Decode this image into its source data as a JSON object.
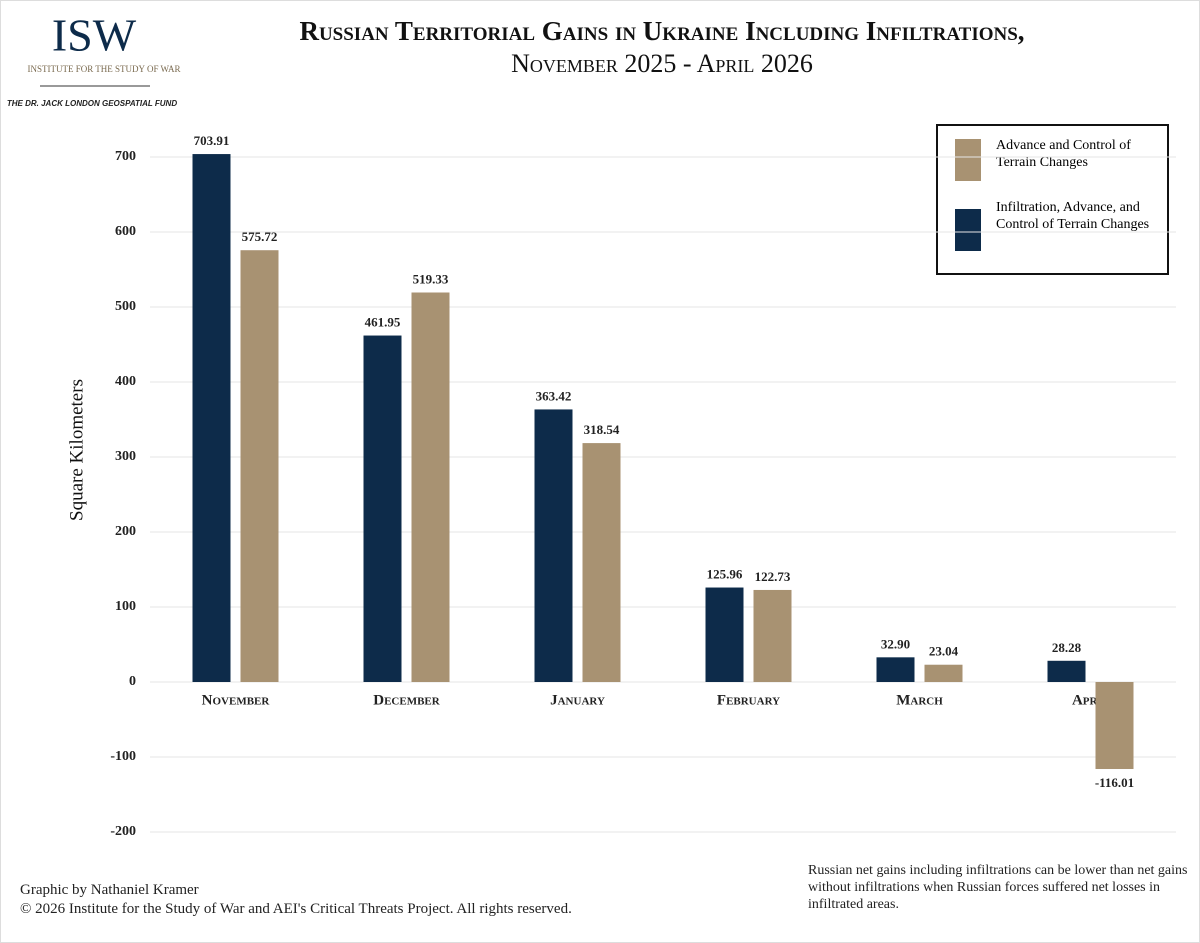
{
  "logo": {
    "mark": "ISW",
    "name": "Institute for the Study of War",
    "fund": "The Dr. Jack London Geospatial Fund"
  },
  "chart_data": {
    "type": "bar",
    "title": "Russian Territorial Gains in Ukraine Including Infiltrations,",
    "subtitle": "November 2025 - April 2026",
    "y_label": "Square Kilometers",
    "categories": [
      "November",
      "December",
      "January",
      "February",
      "March",
      "April"
    ],
    "series": [
      {
        "name": "Infiltration, Advance, and Control of Terrain Changes",
        "color": "#0d2b4a",
        "values": [
          703.91,
          461.95,
          363.42,
          125.96,
          32.9,
          28.28
        ],
        "value_labels": [
          "703.91",
          "461.95",
          "363.42",
          "125.96",
          "32.90",
          "28.28"
        ]
      },
      {
        "name": "Advance and Control of Terrain Changes",
        "color": "#a89272",
        "values": [
          575.72,
          519.33,
          318.54,
          122.73,
          23.04,
          -116.01
        ]
      }
    ],
    "ylim": [
      -200,
      700
    ],
    "yticks": [
      -200,
      -100,
      0,
      100,
      200,
      300,
      400,
      500,
      600,
      700
    ],
    "grid": true,
    "legend": "top-right",
    "note": "Russian net gains including infiltrations can be lower than net gains without infiltrations when Russian forces suffered net losses in infiltrated areas.",
    "credit": "Graphic by Nathaniel Kramer",
    "copyright": "© 2026 Institute for the Study of War and AEI's Critical Threats Project. All rights reserved."
  }
}
